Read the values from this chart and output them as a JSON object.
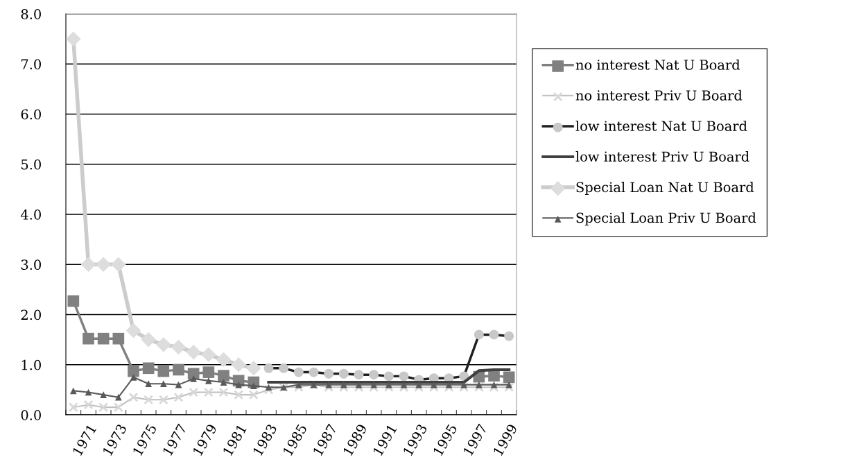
{
  "chart_data": {
    "type": "line",
    "categories": [
      null,
      "1971",
      null,
      "1973",
      null,
      "1975",
      null,
      "1977",
      null,
      "1979",
      null,
      "1981",
      null,
      "1983",
      null,
      "1985",
      null,
      "1987",
      null,
      "1989",
      null,
      "1991",
      null,
      "1993",
      null,
      "1995",
      null,
      "1997",
      null,
      "1999"
    ],
    "series": [
      {
        "name": "no interest Nat U Board",
        "color": "#808080",
        "marker": "square",
        "values": [
          2.27,
          1.52,
          1.52,
          1.52,
          0.87,
          0.93,
          0.87,
          0.9,
          0.82,
          0.85,
          0.78,
          0.68,
          0.65,
          null,
          null,
          null,
          null,
          null,
          null,
          null,
          null,
          null,
          null,
          null,
          null,
          null,
          null,
          0.76,
          0.78,
          0.75
        ]
      },
      {
        "name": "no interest Priv U Board",
        "color": "#c0c0c0",
        "marker": "cross",
        "values": [
          0.15,
          0.2,
          0.15,
          0.15,
          0.35,
          0.3,
          0.3,
          0.35,
          0.45,
          0.45,
          0.45,
          0.4,
          0.4,
          0.5,
          0.55,
          0.55,
          0.6,
          0.55,
          0.55,
          0.55,
          0.55,
          0.55,
          0.55,
          0.55,
          0.55,
          0.55,
          0.55,
          0.55,
          0.55,
          0.55
        ]
      },
      {
        "name": "low interest Nat U Board",
        "color": "#202020",
        "marker": "circle",
        "values": [
          null,
          null,
          null,
          null,
          null,
          null,
          null,
          null,
          null,
          null,
          null,
          null,
          null,
          0.93,
          0.93,
          0.85,
          0.85,
          0.82,
          0.82,
          0.8,
          0.8,
          0.77,
          0.77,
          0.7,
          0.73,
          0.73,
          0.77,
          1.6,
          1.6,
          1.57
        ]
      },
      {
        "name": "low interest Priv U Board",
        "color": "#404040",
        "marker": "none",
        "values": [
          null,
          null,
          null,
          null,
          null,
          null,
          null,
          null,
          null,
          null,
          null,
          null,
          null,
          0.65,
          0.65,
          0.65,
          0.65,
          0.65,
          0.65,
          0.65,
          0.65,
          0.65,
          0.65,
          0.65,
          0.65,
          0.65,
          0.65,
          0.88,
          0.9,
          0.9
        ]
      },
      {
        "name": "Special Loan Nat U Board",
        "color": "#cccccc",
        "marker": "diamond",
        "values": [
          7.5,
          3.0,
          3.0,
          3.0,
          1.68,
          1.5,
          1.4,
          1.35,
          1.25,
          1.2,
          1.1,
          1.0,
          0.93,
          null,
          null,
          null,
          null,
          null,
          null,
          null,
          null,
          null,
          null,
          null,
          null,
          null,
          null,
          null,
          null,
          null
        ]
      },
      {
        "name": "Special Loan Priv U Board",
        "color": "#595959",
        "marker": "triangle",
        "values": [
          0.48,
          0.45,
          0.4,
          0.35,
          0.75,
          0.62,
          0.62,
          0.6,
          0.72,
          0.68,
          0.65,
          0.6,
          0.58,
          0.55,
          0.55,
          0.6,
          0.6,
          0.6,
          0.6,
          0.6,
          0.6,
          0.6,
          0.6,
          0.6,
          0.6,
          0.6,
          0.6,
          0.6,
          0.6,
          0.6
        ]
      }
    ],
    "ylim": [
      0,
      8
    ],
    "yticks": [
      {
        "value": 0,
        "label": "0.0"
      },
      {
        "value": 1,
        "label": "1.0"
      },
      {
        "value": 2,
        "label": "2.0"
      },
      {
        "value": 3,
        "label": "3.0"
      },
      {
        "value": 4,
        "label": "4.0"
      },
      {
        "value": 5,
        "label": "5.0"
      },
      {
        "value": 6,
        "label": "6.0"
      },
      {
        "value": 7,
        "label": "7.0"
      },
      {
        "value": 8,
        "label": "8.0"
      }
    ],
    "grid": "y",
    "legend": "right"
  }
}
